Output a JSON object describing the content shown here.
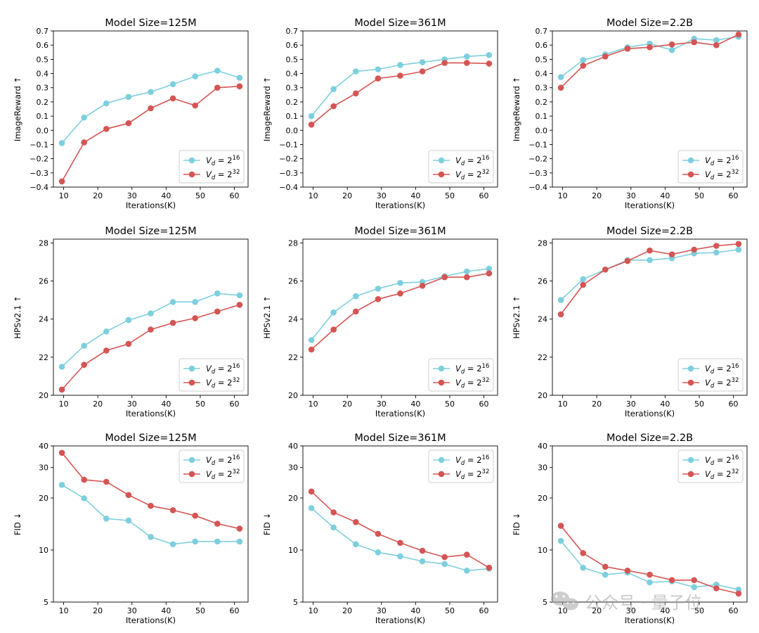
{
  "colors": {
    "series_a": "#7ecfde",
    "series_b": "#d45553"
  },
  "watermark": {
    "text": "公众号 · 量子位"
  },
  "chart_data": [
    {
      "type": "line",
      "title": "Model Size=125M",
      "xlabel": "Iterations(K)",
      "ylabel": "ImageReward ↑",
      "yscale": "linear",
      "ylim": [
        -0.4,
        0.7
      ],
      "yticks": [
        -0.4,
        -0.3,
        -0.2,
        -0.1,
        0.0,
        0.1,
        0.2,
        0.3,
        0.4,
        0.5,
        0.6,
        0.7
      ],
      "ytick_labels": [
        "−0.4",
        "−0.3",
        "−0.2",
        "−0.1",
        "0.0",
        "0.1",
        "0.2",
        "0.3",
        "0.4",
        "0.5",
        "0.6",
        "0.7"
      ],
      "xlim": [
        7,
        64
      ],
      "xticks": [
        10,
        20,
        30,
        40,
        50,
        60
      ],
      "xtick_labels": [
        "10",
        "20",
        "30",
        "40",
        "50",
        "60"
      ],
      "legend_loc": "lower right",
      "x": [
        9.5,
        16,
        22.5,
        29,
        35.5,
        42,
        48.5,
        55,
        61.5
      ],
      "series": [
        {
          "name": "V_d = 2^16",
          "label_base": "V",
          "label_sub": "d",
          "label_eq": " = 2",
          "label_sup": "16",
          "values": [
            -0.09,
            0.09,
            0.19,
            0.235,
            0.27,
            0.325,
            0.38,
            0.42,
            0.37
          ]
        },
        {
          "name": "V_d = 2^32",
          "label_base": "V",
          "label_sub": "d",
          "label_eq": " = 2",
          "label_sup": "32",
          "values": [
            -0.36,
            -0.085,
            0.01,
            0.05,
            0.155,
            0.225,
            0.175,
            0.3,
            0.31
          ]
        }
      ]
    },
    {
      "type": "line",
      "title": "Model Size=361M",
      "xlabel": "Iterations(K)",
      "ylabel": "ImageReward ↑",
      "yscale": "linear",
      "ylim": [
        -0.4,
        0.7
      ],
      "yticks": [
        -0.4,
        -0.3,
        -0.2,
        -0.1,
        0.0,
        0.1,
        0.2,
        0.3,
        0.4,
        0.5,
        0.6,
        0.7
      ],
      "ytick_labels": [
        "−0.4",
        "−0.3",
        "−0.2",
        "−0.1",
        "0.0",
        "0.1",
        "0.2",
        "0.3",
        "0.4",
        "0.5",
        "0.6",
        "0.7"
      ],
      "xlim": [
        7,
        64
      ],
      "xticks": [
        10,
        20,
        30,
        40,
        50,
        60
      ],
      "xtick_labels": [
        "10",
        "20",
        "30",
        "40",
        "50",
        "60"
      ],
      "legend_loc": "lower right",
      "x": [
        9.5,
        16,
        22.5,
        29,
        35.5,
        42,
        48.5,
        55,
        61.5
      ],
      "series": [
        {
          "name": "V_d = 2^16",
          "label_base": "V",
          "label_sub": "d",
          "label_eq": " = 2",
          "label_sup": "16",
          "values": [
            0.1,
            0.29,
            0.415,
            0.43,
            0.46,
            0.48,
            0.5,
            0.52,
            0.53
          ]
        },
        {
          "name": "V_d = 2^32",
          "label_base": "V",
          "label_sub": "d",
          "label_eq": " = 2",
          "label_sup": "32",
          "values": [
            0.04,
            0.17,
            0.26,
            0.365,
            0.385,
            0.415,
            0.475,
            0.475,
            0.47
          ]
        }
      ]
    },
    {
      "type": "line",
      "title": "Model Size=2.2B",
      "xlabel": "Iterations(K)",
      "ylabel": "ImageReward ↑",
      "yscale": "linear",
      "ylim": [
        -0.4,
        0.7
      ],
      "yticks": [
        -0.4,
        -0.3,
        -0.2,
        -0.1,
        0.0,
        0.1,
        0.2,
        0.3,
        0.4,
        0.5,
        0.6,
        0.7
      ],
      "ytick_labels": [
        "−0.4",
        "−0.3",
        "−0.2",
        "−0.1",
        "0.0",
        "0.1",
        "0.2",
        "0.3",
        "0.4",
        "0.5",
        "0.6",
        "0.7"
      ],
      "xlim": [
        7,
        64
      ],
      "xticks": [
        10,
        20,
        30,
        40,
        50,
        60
      ],
      "xtick_labels": [
        "10",
        "20",
        "30",
        "40",
        "50",
        "60"
      ],
      "legend_loc": "lower right",
      "x": [
        9.5,
        16,
        22.5,
        29,
        35.5,
        42,
        48.5,
        55,
        61.5
      ],
      "series": [
        {
          "name": "V_d = 2^16",
          "label_base": "V",
          "label_sub": "d",
          "label_eq": " = 2",
          "label_sup": "16",
          "values": [
            0.375,
            0.495,
            0.535,
            0.585,
            0.61,
            0.565,
            0.645,
            0.635,
            0.66
          ]
        },
        {
          "name": "V_d = 2^32",
          "label_base": "V",
          "label_sub": "d",
          "label_eq": " = 2",
          "label_sup": "32",
          "values": [
            0.3,
            0.455,
            0.52,
            0.575,
            0.585,
            0.605,
            0.62,
            0.6,
            0.675
          ]
        }
      ]
    },
    {
      "type": "line",
      "title": "Model Size=125M",
      "xlabel": "Iterations(K)",
      "ylabel": "HPSv2.1 ↑",
      "yscale": "linear",
      "ylim": [
        20,
        28.2
      ],
      "yticks": [
        20,
        22,
        24,
        26,
        28
      ],
      "ytick_labels": [
        "20",
        "22",
        "24",
        "26",
        "28"
      ],
      "xlim": [
        7,
        64
      ],
      "xticks": [
        10,
        20,
        30,
        40,
        50,
        60
      ],
      "xtick_labels": [
        "10",
        "20",
        "30",
        "40",
        "50",
        "60"
      ],
      "legend_loc": "lower right",
      "x": [
        9.5,
        16,
        22.5,
        29,
        35.5,
        42,
        48.5,
        55,
        61.5
      ],
      "series": [
        {
          "name": "V_d = 2^16",
          "label_base": "V",
          "label_sub": "d",
          "label_eq": " = 2",
          "label_sup": "16",
          "values": [
            21.5,
            22.6,
            23.35,
            23.95,
            24.3,
            24.9,
            24.9,
            25.35,
            25.25
          ]
        },
        {
          "name": "V_d = 2^32",
          "label_base": "V",
          "label_sub": "d",
          "label_eq": " = 2",
          "label_sup": "32",
          "values": [
            20.3,
            21.6,
            22.35,
            22.7,
            23.45,
            23.8,
            24.05,
            24.4,
            24.75
          ]
        }
      ]
    },
    {
      "type": "line",
      "title": "Model Size=361M",
      "xlabel": "Iterations(K)",
      "ylabel": "HPSv2.1 ↑",
      "yscale": "linear",
      "ylim": [
        20,
        28.2
      ],
      "yticks": [
        20,
        22,
        24,
        26,
        28
      ],
      "ytick_labels": [
        "20",
        "22",
        "24",
        "26",
        "28"
      ],
      "xlim": [
        7,
        64
      ],
      "xticks": [
        10,
        20,
        30,
        40,
        50,
        60
      ],
      "xtick_labels": [
        "10",
        "20",
        "30",
        "40",
        "50",
        "60"
      ],
      "legend_loc": "lower right",
      "x": [
        9.5,
        16,
        22.5,
        29,
        35.5,
        42,
        48.5,
        55,
        61.5
      ],
      "series": [
        {
          "name": "V_d = 2^16",
          "label_base": "V",
          "label_sub": "d",
          "label_eq": " = 2",
          "label_sup": "16",
          "values": [
            22.9,
            24.35,
            25.2,
            25.6,
            25.9,
            25.95,
            26.25,
            26.5,
            26.65
          ]
        },
        {
          "name": "V_d = 2^32",
          "label_base": "V",
          "label_sub": "d",
          "label_eq": " = 2",
          "label_sup": "32",
          "values": [
            22.4,
            23.45,
            24.4,
            25.05,
            25.35,
            25.75,
            26.2,
            26.2,
            26.4
          ]
        }
      ]
    },
    {
      "type": "line",
      "title": "Model Size=2.2B",
      "xlabel": "Iterations(K)",
      "ylabel": "HPSv2.1 ↑",
      "yscale": "linear",
      "ylim": [
        20,
        28.2
      ],
      "yticks": [
        20,
        22,
        24,
        26,
        28
      ],
      "ytick_labels": [
        "20",
        "22",
        "24",
        "26",
        "28"
      ],
      "xlim": [
        7,
        64
      ],
      "xticks": [
        10,
        20,
        30,
        40,
        50,
        60
      ],
      "xtick_labels": [
        "10",
        "20",
        "30",
        "40",
        "50",
        "60"
      ],
      "legend_loc": "lower right",
      "x": [
        9.5,
        16,
        22.5,
        29,
        35.5,
        42,
        48.5,
        55,
        61.5
      ],
      "series": [
        {
          "name": "V_d = 2^16",
          "label_base": "V",
          "label_sub": "d",
          "label_eq": " = 2",
          "label_sup": "16",
          "values": [
            25.0,
            26.1,
            26.6,
            27.1,
            27.1,
            27.2,
            27.45,
            27.5,
            27.65
          ]
        },
        {
          "name": "V_d = 2^32",
          "label_base": "V",
          "label_sub": "d",
          "label_eq": " = 2",
          "label_sup": "32",
          "values": [
            24.25,
            25.8,
            26.6,
            27.05,
            27.6,
            27.4,
            27.65,
            27.85,
            27.95
          ]
        }
      ]
    },
    {
      "type": "line",
      "title": "Model Size=125M",
      "xlabel": "Iterations(K)",
      "ylabel": "FID ↓",
      "yscale": "log",
      "ylim": [
        5,
        40
      ],
      "yticks": [
        5,
        10,
        20,
        30,
        40
      ],
      "ytick_labels": [
        "5",
        "10",
        "20",
        "30",
        "40"
      ],
      "xlim": [
        7,
        64
      ],
      "xticks": [
        10,
        20,
        30,
        40,
        50,
        60
      ],
      "xtick_labels": [
        "10",
        "20",
        "30",
        "40",
        "50",
        "60"
      ],
      "legend_loc": "upper right",
      "x": [
        9.5,
        16,
        22.5,
        29,
        35.5,
        42,
        48.5,
        55,
        61.5
      ],
      "series": [
        {
          "name": "V_d = 2^16",
          "label_base": "V",
          "label_sub": "d",
          "label_eq": " = 2",
          "label_sup": "16",
          "values": [
            23.8,
            19.9,
            15.2,
            14.8,
            11.9,
            10.8,
            11.2,
            11.2,
            11.2
          ]
        },
        {
          "name": "V_d = 2^32",
          "label_base": "V",
          "label_sub": "d",
          "label_eq": " = 2",
          "label_sup": "32",
          "values": [
            36.5,
            25.5,
            24.8,
            20.8,
            18.0,
            17.0,
            15.8,
            14.2,
            13.3
          ]
        }
      ]
    },
    {
      "type": "line",
      "title": "Model Size=361M",
      "xlabel": "Iterations(K)",
      "ylabel": "FID ↓",
      "yscale": "log",
      "ylim": [
        5,
        40
      ],
      "yticks": [
        5,
        10,
        20,
        30,
        40
      ],
      "ytick_labels": [
        "5",
        "10",
        "20",
        "30",
        "40"
      ],
      "xlim": [
        7,
        64
      ],
      "xticks": [
        10,
        20,
        30,
        40,
        50,
        60
      ],
      "xtick_labels": [
        "10",
        "20",
        "30",
        "40",
        "50",
        "60"
      ],
      "legend_loc": "upper right",
      "x": [
        9.5,
        16,
        22.5,
        29,
        35.5,
        42,
        48.5,
        55,
        61.5
      ],
      "series": [
        {
          "name": "V_d = 2^16",
          "label_base": "V",
          "label_sub": "d",
          "label_eq": " = 2",
          "label_sup": "16",
          "values": [
            17.5,
            13.5,
            10.8,
            9.7,
            9.2,
            8.6,
            8.3,
            7.6,
            7.8
          ]
        },
        {
          "name": "V_d = 2^32",
          "label_base": "V",
          "label_sub": "d",
          "label_eq": " = 2",
          "label_sup": "32",
          "values": [
            21.8,
            16.5,
            14.5,
            12.4,
            11.0,
            9.9,
            9.1,
            9.4,
            7.9
          ]
        }
      ]
    },
    {
      "type": "line",
      "title": "Model Size=2.2B",
      "xlabel": "Iterations(K)",
      "ylabel": "FID ↓",
      "yscale": "log",
      "ylim": [
        5,
        40
      ],
      "yticks": [
        5,
        10,
        20,
        30,
        40
      ],
      "ytick_labels": [
        "5",
        "10",
        "20",
        "30",
        "40"
      ],
      "xlim": [
        7,
        64
      ],
      "xticks": [
        10,
        20,
        30,
        40,
        50,
        60
      ],
      "xtick_labels": [
        "10",
        "20",
        "30",
        "40",
        "50",
        "60"
      ],
      "legend_loc": "upper right",
      "x": [
        9.5,
        16,
        22.5,
        29,
        35.5,
        42,
        48.5,
        55,
        61.5
      ],
      "series": [
        {
          "name": "V_d = 2^16",
          "label_base": "V",
          "label_sub": "d",
          "label_eq": " = 2",
          "label_sup": "16",
          "values": [
            11.3,
            7.9,
            7.2,
            7.4,
            6.5,
            6.6,
            6.1,
            6.3,
            5.9
          ]
        },
        {
          "name": "V_d = 2^32",
          "label_base": "V",
          "label_sub": "d",
          "label_eq": " = 2",
          "label_sup": "32",
          "values": [
            13.8,
            9.6,
            8.0,
            7.6,
            7.2,
            6.7,
            6.7,
            6.0,
            5.6
          ]
        }
      ]
    }
  ]
}
